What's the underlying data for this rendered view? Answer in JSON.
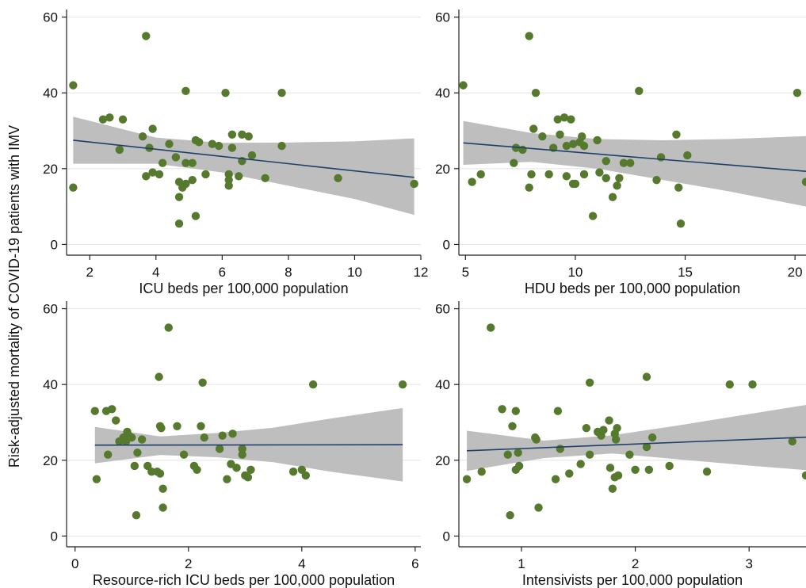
{
  "figure": {
    "ylabel": "Risk-adjusted mortality of COVID-19 patients with IMV"
  },
  "colors": {
    "point": "#557a2e",
    "fit_line": "#1f3f6b",
    "ci_band": "#bebebe",
    "grid": "#e6e6e6",
    "axis": "#222222"
  },
  "chart_data": [
    {
      "type": "scatter",
      "xlabel": "ICU beds per 100,000 population",
      "xlim": [
        1.3,
        12.0
      ],
      "ylim": [
        -2,
        62
      ],
      "xticks": [
        2,
        4,
        6,
        8,
        10,
        12
      ],
      "yticks": [
        0,
        20,
        40,
        60
      ],
      "grid": true,
      "points": [
        [
          1.5,
          42
        ],
        [
          1.5,
          15
        ],
        [
          2.4,
          33
        ],
        [
          2.6,
          33.5
        ],
        [
          2.9,
          25
        ],
        [
          3.0,
          33
        ],
        [
          3.6,
          28.5
        ],
        [
          3.7,
          55
        ],
        [
          3.7,
          18
        ],
        [
          3.8,
          25.5
        ],
        [
          3.9,
          19
        ],
        [
          3.9,
          30.5
        ],
        [
          4.1,
          18.5
        ],
        [
          4.2,
          21.5
        ],
        [
          4.4,
          26.5
        ],
        [
          4.6,
          23
        ],
        [
          4.7,
          16.5
        ],
        [
          4.7,
          12.5
        ],
        [
          4.7,
          5.5
        ],
        [
          4.8,
          15
        ],
        [
          4.9,
          21.5
        ],
        [
          4.9,
          40.5
        ],
        [
          4.9,
          16
        ],
        [
          5.1,
          17
        ],
        [
          5.1,
          21.5
        ],
        [
          5.2,
          27.5
        ],
        [
          5.2,
          7.5
        ],
        [
          5.3,
          27
        ],
        [
          5.5,
          18.5
        ],
        [
          5.7,
          26.5
        ],
        [
          5.9,
          26
        ],
        [
          6.1,
          40
        ],
        [
          6.2,
          18.5
        ],
        [
          6.2,
          17
        ],
        [
          6.2,
          15.5
        ],
        [
          6.3,
          25.5
        ],
        [
          6.3,
          29
        ],
        [
          6.5,
          18
        ],
        [
          6.6,
          29
        ],
        [
          6.6,
          22
        ],
        [
          6.8,
          28.5
        ],
        [
          6.9,
          23.5
        ],
        [
          7.3,
          17.5
        ],
        [
          7.8,
          40
        ],
        [
          7.8,
          26
        ],
        [
          9.5,
          17.5
        ],
        [
          11.8,
          16
        ]
      ],
      "fit": {
        "x": [
          1.5,
          11.8
        ],
        "y": [
          27.5,
          17.7
        ]
      },
      "ci": {
        "x": [
          1.5,
          4.0,
          6.0,
          8.0,
          10.0,
          11.8
        ],
        "lower": [
          21.3,
          21.3,
          19.0,
          15.5,
          12.0,
          7.8
        ],
        "upper": [
          33.7,
          28.2,
          26.8,
          26.9,
          27.2,
          28.0
        ]
      }
    },
    {
      "type": "scatter",
      "xlabel": "HDU beds per 100,000 population",
      "xlim": [
        4.7,
        20.5
      ],
      "ylim": [
        -2,
        62
      ],
      "xticks": [
        5,
        10,
        15,
        20
      ],
      "yticks": [
        0,
        20,
        40,
        60
      ],
      "grid": true,
      "points": [
        [
          4.9,
          42
        ],
        [
          5.3,
          16.5
        ],
        [
          5.7,
          18.5
        ],
        [
          7.2,
          21.5
        ],
        [
          7.3,
          25.5
        ],
        [
          7.6,
          25
        ],
        [
          7.9,
          55
        ],
        [
          7.9,
          15
        ],
        [
          8.0,
          18.5
        ],
        [
          8.1,
          30.5
        ],
        [
          8.2,
          40
        ],
        [
          8.5,
          28.5
        ],
        [
          8.8,
          18.5
        ],
        [
          9.0,
          25.5
        ],
        [
          9.2,
          33
        ],
        [
          9.3,
          29
        ],
        [
          9.5,
          33.5
        ],
        [
          9.6,
          18
        ],
        [
          9.6,
          26
        ],
        [
          9.8,
          33
        ],
        [
          9.9,
          26.5
        ],
        [
          9.9,
          16
        ],
        [
          10.0,
          16
        ],
        [
          10.2,
          27
        ],
        [
          10.3,
          28.5
        ],
        [
          10.4,
          18.5
        ],
        [
          10.4,
          26
        ],
        [
          10.8,
          7.5
        ],
        [
          11.0,
          27.5
        ],
        [
          11.1,
          19
        ],
        [
          11.4,
          17.5
        ],
        [
          11.4,
          22
        ],
        [
          11.7,
          12.5
        ],
        [
          11.9,
          15.5
        ],
        [
          12.0,
          17.5
        ],
        [
          12.2,
          21.5
        ],
        [
          12.5,
          21.5
        ],
        [
          12.9,
          40.5
        ],
        [
          13.7,
          17
        ],
        [
          13.9,
          23
        ],
        [
          14.6,
          29
        ],
        [
          14.7,
          15
        ],
        [
          14.8,
          5.5
        ],
        [
          15.1,
          23.5
        ],
        [
          20.1,
          40
        ],
        [
          20.5,
          16.5
        ]
      ],
      "fit": {
        "x": [
          4.9,
          20.5
        ],
        "y": [
          26.8,
          19.3
        ]
      },
      "ci": {
        "x": [
          4.9,
          8.0,
          11.0,
          14.0,
          17.0,
          20.5
        ],
        "lower": [
          21.0,
          21.8,
          20.0,
          17.0,
          14.0,
          10.0
        ],
        "upper": [
          32.6,
          29.4,
          27.8,
          27.5,
          27.8,
          28.6
        ]
      }
    },
    {
      "type": "scatter",
      "xlabel": "Resource-rich ICU beds per 100,000 population",
      "xlim": [
        -0.15,
        6.1
      ],
      "ylim": [
        -2,
        62
      ],
      "xticks": [
        0,
        2,
        4,
        6
      ],
      "yticks": [
        0,
        20,
        40,
        60
      ],
      "grid": true,
      "points": [
        [
          0.35,
          33
        ],
        [
          0.38,
          15
        ],
        [
          0.55,
          33
        ],
        [
          0.58,
          21.5
        ],
        [
          0.65,
          33.5
        ],
        [
          0.72,
          30.5
        ],
        [
          0.78,
          25
        ],
        [
          0.85,
          26
        ],
        [
          0.9,
          25
        ],
        [
          0.92,
          27.5
        ],
        [
          0.95,
          26.5
        ],
        [
          1.0,
          26
        ],
        [
          1.05,
          18.5
        ],
        [
          1.08,
          5.5
        ],
        [
          1.1,
          22
        ],
        [
          1.18,
          25.5
        ],
        [
          1.28,
          18.5
        ],
        [
          1.35,
          17
        ],
        [
          1.45,
          17
        ],
        [
          1.48,
          42
        ],
        [
          1.5,
          16.5
        ],
        [
          1.5,
          29
        ],
        [
          1.52,
          28.5
        ],
        [
          1.55,
          12.5
        ],
        [
          1.55,
          7.5
        ],
        [
          1.65,
          55
        ],
        [
          1.8,
          29
        ],
        [
          1.92,
          21.5
        ],
        [
          2.1,
          18.5
        ],
        [
          2.15,
          17.5
        ],
        [
          2.22,
          29
        ],
        [
          2.25,
          40.5
        ],
        [
          2.28,
          26
        ],
        [
          2.55,
          23
        ],
        [
          2.6,
          26.5
        ],
        [
          2.68,
          15
        ],
        [
          2.75,
          19
        ],
        [
          2.78,
          27
        ],
        [
          2.85,
          18
        ],
        [
          2.95,
          23
        ],
        [
          2.95,
          21.5
        ],
        [
          3.0,
          16
        ],
        [
          3.05,
          15.5
        ],
        [
          3.1,
          17.5
        ],
        [
          3.85,
          17
        ],
        [
          4.0,
          17.5
        ],
        [
          4.07,
          16
        ],
        [
          4.2,
          40
        ],
        [
          5.78,
          40
        ]
      ],
      "fit": {
        "x": [
          0.35,
          5.78
        ],
        "y": [
          24.0,
          24.1
        ]
      },
      "ci": {
        "x": [
          0.35,
          1.5,
          2.5,
          3.5,
          4.5,
          5.78
        ],
        "lower": [
          19.2,
          21.4,
          20.8,
          19.5,
          17.0,
          14.4
        ],
        "upper": [
          28.8,
          26.3,
          27.2,
          28.6,
          31.0,
          33.8
        ]
      }
    },
    {
      "type": "scatter",
      "xlabel": "Intensivists per 100,000 population",
      "xlim": [
        0.45,
        3.5
      ],
      "ylim": [
        -2,
        62
      ],
      "xticks": [
        1,
        2,
        3
      ],
      "yticks": [
        0,
        20,
        40,
        60
      ],
      "grid": true,
      "points": [
        [
          0.52,
          15
        ],
        [
          0.65,
          17
        ],
        [
          0.73,
          55
        ],
        [
          0.83,
          33.5
        ],
        [
          0.88,
          21.5
        ],
        [
          0.9,
          5.5
        ],
        [
          0.92,
          29
        ],
        [
          0.95,
          33
        ],
        [
          0.95,
          17.5
        ],
        [
          0.97,
          22
        ],
        [
          0.98,
          18.5
        ],
        [
          1.12,
          26
        ],
        [
          1.13,
          25.5
        ],
        [
          1.15,
          7.5
        ],
        [
          1.3,
          15
        ],
        [
          1.32,
          33
        ],
        [
          1.34,
          23
        ],
        [
          1.42,
          16.5
        ],
        [
          1.52,
          19
        ],
        [
          1.57,
          28.5
        ],
        [
          1.6,
          40.5
        ],
        [
          1.6,
          21.5
        ],
        [
          1.67,
          27.5
        ],
        [
          1.7,
          26.5
        ],
        [
          1.72,
          28
        ],
        [
          1.77,
          30.5
        ],
        [
          1.78,
          18
        ],
        [
          1.8,
          12.5
        ],
        [
          1.82,
          15.5
        ],
        [
          1.82,
          27
        ],
        [
          1.83,
          25.5
        ],
        [
          1.84,
          28.5
        ],
        [
          1.85,
          16
        ],
        [
          1.95,
          21.5
        ],
        [
          2.0,
          17.5
        ],
        [
          2.1,
          42
        ],
        [
          2.1,
          23.5
        ],
        [
          2.12,
          17.5
        ],
        [
          2.15,
          26
        ],
        [
          2.3,
          18.5
        ],
        [
          2.63,
          17
        ],
        [
          2.83,
          40
        ],
        [
          3.03,
          40
        ],
        [
          3.38,
          25
        ],
        [
          3.5,
          16
        ]
      ],
      "fit": {
        "x": [
          0.52,
          3.5
        ],
        "y": [
          22.5,
          26.1
        ]
      },
      "ci": {
        "x": [
          0.52,
          1.2,
          1.8,
          2.4,
          3.0,
          3.5
        ],
        "lower": [
          17.2,
          20.6,
          21.8,
          20.2,
          18.6,
          17.4
        ],
        "upper": [
          27.8,
          25.2,
          26.6,
          29.3,
          32.2,
          34.6
        ]
      }
    }
  ]
}
